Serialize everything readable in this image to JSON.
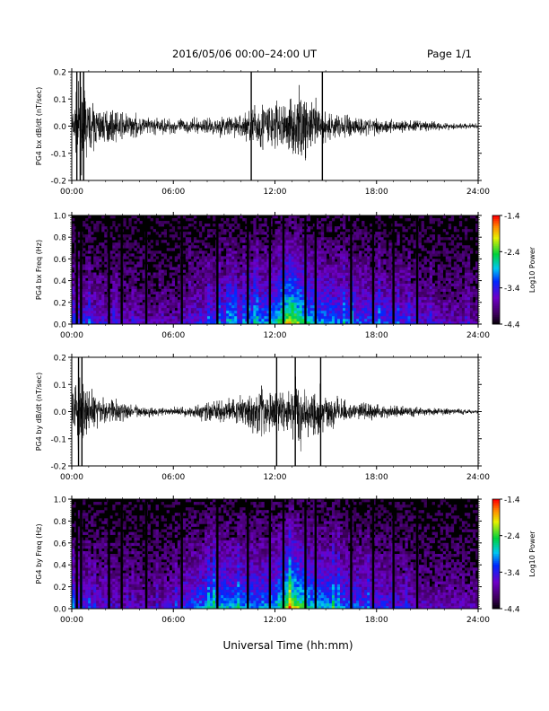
{
  "header": {
    "title": "2016/05/06  00:00–24:00 UT",
    "page": "Page 1/1"
  },
  "xlabel": "Universal Time (hh:mm)",
  "chart_data": [
    {
      "type": "line",
      "ylabel": "PG4 bx dB/dt (nT/sec)",
      "ylim": [
        -0.2,
        0.2
      ],
      "yticks": [
        "0.2",
        "0.1",
        "0.0",
        "-0.1",
        "-0.2"
      ],
      "xlim": [
        "00:00",
        "24:00"
      ],
      "xticks": [
        "00:00",
        "06:00",
        "12:00",
        "18:00",
        "24:00"
      ],
      "envelope": {
        "hours": [
          0,
          0.5,
          1,
          2,
          3,
          4,
          5,
          6,
          7,
          8,
          9,
          10,
          10.5,
          11,
          11.5,
          12,
          12.5,
          13,
          13.5,
          14,
          14.5,
          15,
          15.5,
          16,
          17,
          18,
          19,
          20,
          21,
          22,
          23,
          24
        ],
        "amplitude": [
          0.08,
          0.2,
          0.12,
          0.08,
          0.07,
          0.05,
          0.04,
          0.04,
          0.035,
          0.04,
          0.05,
          0.06,
          0.09,
          0.12,
          0.15,
          0.13,
          0.11,
          0.16,
          0.18,
          0.14,
          0.12,
          0.08,
          0.06,
          0.07,
          0.05,
          0.04,
          0.035,
          0.03,
          0.025,
          0.02,
          0.015,
          0.012
        ]
      },
      "spikes_hours": [
        0.3,
        0.5,
        0.7,
        10.6,
        14.8
      ]
    },
    {
      "type": "heatmap",
      "ylabel": "PG4 bx Freq (Hz)",
      "ylim": [
        0.0,
        1.0
      ],
      "yticks": [
        "1.0",
        "0.8",
        "0.6",
        "0.4",
        "0.2",
        "0.0"
      ],
      "xlim": [
        "00:00",
        "24:00"
      ],
      "xticks": [
        "00:00",
        "06:00",
        "12:00",
        "18:00",
        "24:00"
      ],
      "colorbar": {
        "label": "Log10 Power",
        "range": [
          -4.4,
          -1.4
        ],
        "ticks": [
          "-1.4",
          "-2.4",
          "-3.4",
          "-4.4"
        ]
      },
      "gap_hours": [
        0.3,
        0.55,
        2.2,
        2.95,
        4.4,
        6.5,
        8.6,
        10.4,
        11.7,
        12.5,
        13.8,
        14.4,
        16.5,
        17.8,
        19.0,
        20.4
      ],
      "activity": {
        "hours": [
          0,
          1,
          2,
          3,
          4,
          5,
          6,
          7,
          8,
          9,
          10,
          11,
          12,
          12.5,
          13,
          13.5,
          14,
          15,
          16,
          17,
          18,
          19,
          20,
          21,
          22,
          23,
          24
        ],
        "level": [
          0.45,
          0.4,
          0.35,
          0.3,
          0.3,
          0.25,
          0.25,
          0.35,
          0.45,
          0.5,
          0.5,
          0.55,
          0.65,
          0.9,
          1.0,
          0.85,
          0.7,
          0.6,
          0.55,
          0.5,
          0.5,
          0.45,
          0.4,
          0.35,
          0.3,
          0.3,
          0.25
        ]
      }
    },
    {
      "type": "line",
      "ylabel": "PG4 by dB/dt (nT/sec)",
      "ylim": [
        -0.2,
        0.2
      ],
      "yticks": [
        "0.2",
        "0.1",
        "0.0",
        "-0.1",
        "-0.2"
      ],
      "xlim": [
        "00:00",
        "24:00"
      ],
      "xticks": [
        "00:00",
        "06:00",
        "12:00",
        "18:00",
        "24:00"
      ],
      "envelope": {
        "hours": [
          0,
          0.5,
          1,
          2,
          3,
          4,
          5,
          6,
          7,
          8,
          9,
          10,
          10.5,
          11,
          11.5,
          12,
          12.5,
          13,
          13.5,
          14,
          14.5,
          15,
          15.5,
          16,
          17,
          18,
          19,
          20,
          21,
          22,
          23,
          24
        ],
        "amplitude": [
          0.1,
          0.2,
          0.1,
          0.06,
          0.05,
          0.03,
          0.02,
          0.02,
          0.03,
          0.05,
          0.06,
          0.08,
          0.1,
          0.13,
          0.12,
          0.11,
          0.1,
          0.14,
          0.18,
          0.13,
          0.11,
          0.09,
          0.07,
          0.06,
          0.045,
          0.035,
          0.03,
          0.025,
          0.02,
          0.018,
          0.015,
          0.012
        ]
      },
      "spikes_hours": [
        0.4,
        0.6,
        12.1,
        13.2,
        14.7
      ]
    },
    {
      "type": "heatmap",
      "ylabel": "PG4 by Freq (Hz)",
      "ylim": [
        0.0,
        1.0
      ],
      "yticks": [
        "1.0",
        "0.8",
        "0.6",
        "0.4",
        "0.2",
        "0.0"
      ],
      "xlim": [
        "00:00",
        "24:00"
      ],
      "xticks": [
        "00:00",
        "06:00",
        "12:00",
        "18:00",
        "24:00"
      ],
      "colorbar": {
        "label": "Log10 Power",
        "range": [
          -4.4,
          -1.4
        ],
        "ticks": [
          "-1.4",
          "-2.4",
          "-3.4",
          "-4.4"
        ]
      },
      "gap_hours": [
        0.3,
        0.55,
        2.2,
        2.95,
        4.4,
        6.5,
        8.6,
        10.4,
        11.7,
        12.5,
        13.8,
        14.4,
        16.5,
        17.8,
        19.0,
        20.4
      ],
      "activity": {
        "hours": [
          0,
          1,
          2,
          3,
          4,
          5,
          6,
          7,
          8,
          9,
          10,
          11,
          12,
          12.5,
          13,
          13.5,
          14,
          15,
          16,
          17,
          18,
          19,
          20,
          21,
          22,
          23,
          24
        ],
        "level": [
          0.45,
          0.4,
          0.35,
          0.3,
          0.3,
          0.3,
          0.35,
          0.5,
          0.6,
          0.65,
          0.6,
          0.6,
          0.65,
          0.85,
          0.95,
          0.85,
          0.7,
          0.65,
          0.55,
          0.5,
          0.45,
          0.4,
          0.35,
          0.3,
          0.3,
          0.3,
          0.25
        ]
      }
    }
  ]
}
